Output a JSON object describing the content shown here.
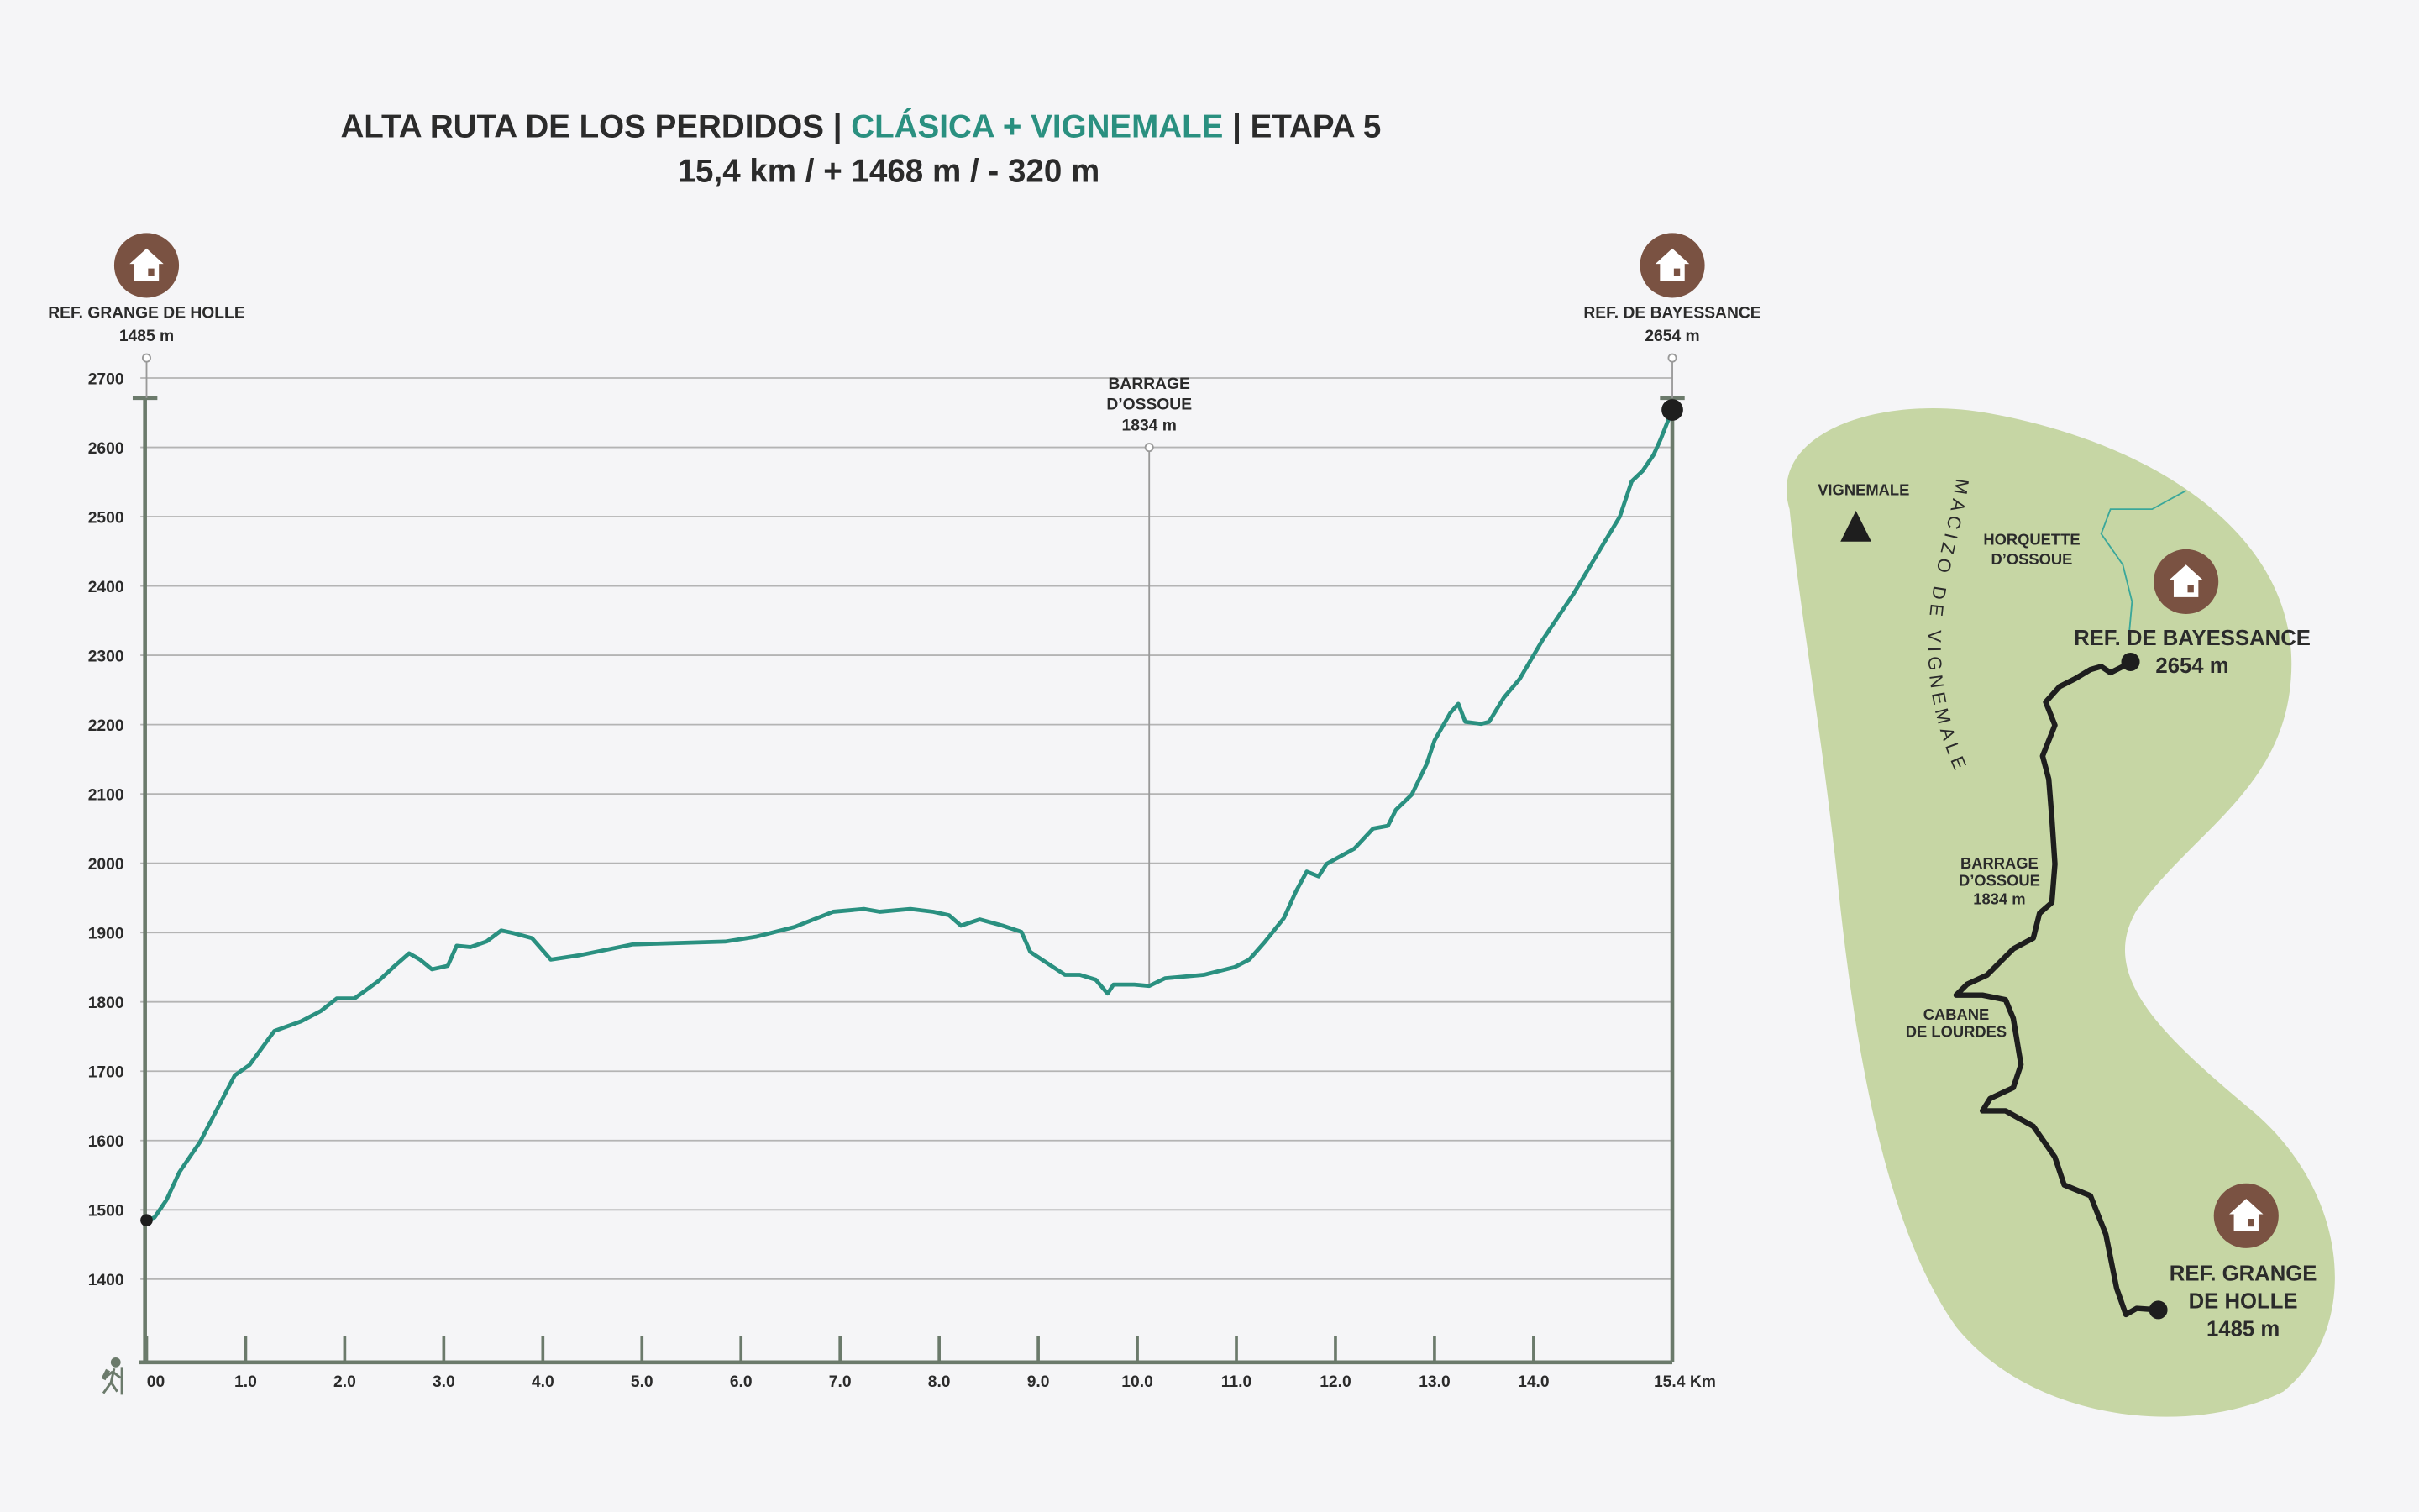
{
  "chart_data": {
    "type": "line",
    "title_parts": [
      "ALTA RUTA DE LOS PERDIDOS |",
      "CLÁSICA + VIGNEMALE",
      "| ETAPA 5"
    ],
    "title_colors": [
      "#2b2b2b",
      "#2a9080",
      "#2b2b2b"
    ],
    "subtitle": "15,4 km / + 1468 m / - 320 m",
    "x": [
      0,
      0.08,
      0.2,
      0.33,
      0.54,
      0.89,
      1.04,
      1.29,
      1.56,
      1.76,
      1.92,
      2.1,
      2.34,
      2.49,
      2.65,
      2.76,
      2.88,
      3.04,
      3.13,
      3.27,
      3.43,
      3.58,
      3.71,
      3.89,
      4.08,
      4.36,
      4.91,
      5.84,
      6.15,
      6.54,
      6.93,
      7.24,
      7.4,
      7.71,
      7.94,
      8.1,
      8.22,
      8.41,
      8.64,
      8.83,
      8.92,
      9.11,
      9.27,
      9.42,
      9.58,
      9.7,
      9.76,
      9.97,
      10.12,
      10.28,
      10.67,
      10.98,
      11.13,
      11.29,
      11.48,
      11.6,
      11.71,
      11.83,
      11.91,
      12.19,
      12.38,
      12.53,
      12.61,
      12.77,
      12.92,
      13.0,
      13.16,
      13.24,
      13.31,
      13.47,
      13.55,
      13.7,
      13.86,
      14.09,
      14.4,
      14.71,
      14.87,
      14.99,
      15.1,
      15.21,
      15.28,
      15.4
    ],
    "values": [
      1485,
      1489,
      1514,
      1554,
      1598,
      1694,
      1709,
      1758,
      1772,
      1787,
      1805,
      1805,
      1830,
      1850,
      1870,
      1861,
      1847,
      1852,
      1881,
      1879,
      1887,
      1903,
      1899,
      1892,
      1861,
      1867,
      1883,
      1887,
      1894,
      1908,
      1930,
      1934,
      1930,
      1934,
      1930,
      1925,
      1910,
      1919,
      1910,
      1901,
      1872,
      1854,
      1839,
      1839,
      1832,
      1812,
      1825,
      1825,
      1823,
      1834,
      1839,
      1850,
      1861,
      1887,
      1921,
      1959,
      1988,
      1981,
      1999,
      2021,
      2050,
      2054,
      2077,
      2099,
      2143,
      2177,
      2217,
      2230,
      2204,
      2201,
      2204,
      2239,
      2266,
      2322,
      2388,
      2462,
      2500,
      2551,
      2566,
      2589,
      2611,
      2654
    ],
    "color": "#2a9080",
    "xlim": [
      0,
      15.4
    ],
    "xticks": [
      {
        "value": 0,
        "label": "00"
      },
      {
        "value": 1,
        "label": "1.0"
      },
      {
        "value": 2,
        "label": "2.0"
      },
      {
        "value": 3,
        "label": "3.0"
      },
      {
        "value": 4,
        "label": "4.0"
      },
      {
        "value": 5,
        "label": "5.0"
      },
      {
        "value": 6,
        "label": "6.0"
      },
      {
        "value": 7,
        "label": "7.0"
      },
      {
        "value": 8,
        "label": "8.0"
      },
      {
        "value": 9,
        "label": "9.0"
      },
      {
        "value": 10,
        "label": "10.0"
      },
      {
        "value": 11,
        "label": "11.0"
      },
      {
        "value": 12,
        "label": "12.0"
      },
      {
        "value": 13,
        "label": "13.0"
      },
      {
        "value": 14,
        "label": "14.0"
      },
      {
        "value": 15.4,
        "label": "15.4 Km"
      }
    ],
    "ylim": [
      1280,
      2700
    ],
    "yticks": [
      1400,
      1500,
      1600,
      1700,
      1800,
      1900,
      2000,
      2100,
      2200,
      2300,
      2400,
      2500,
      2600,
      2700
    ],
    "grid": true,
    "annotations": [
      {
        "lines": [
          "REF. GRANGE DE HOLLE"
        ],
        "label": "1485 m",
        "x": 0,
        "hut": true
      },
      {
        "lines": [
          "BARRAGE",
          "D’OSSOUE"
        ],
        "label": "1834 m",
        "x": 10.12,
        "hut": false
      },
      {
        "lines": [
          "REF. DE BAYESSANCE"
        ],
        "label": "2654 m",
        "x": 15.4,
        "hut": true
      }
    ]
  },
  "map": {
    "peak": "VIGNEMALE",
    "massif": "MACIZO DE VIGNEMALE",
    "horquette": [
      "HORQUETTE",
      "D’OSSOUE"
    ],
    "bayessance": [
      "REF. DE BAYESSANCE",
      "2654 m"
    ],
    "barrage": [
      "BARRAGE",
      "D’OSSOUE",
      "1834 m"
    ],
    "cabane": [
      "CABANE",
      "DE LOURDES"
    ],
    "grange": [
      "REF. GRANGE",
      "DE HOLLE",
      "1485 m"
    ]
  }
}
